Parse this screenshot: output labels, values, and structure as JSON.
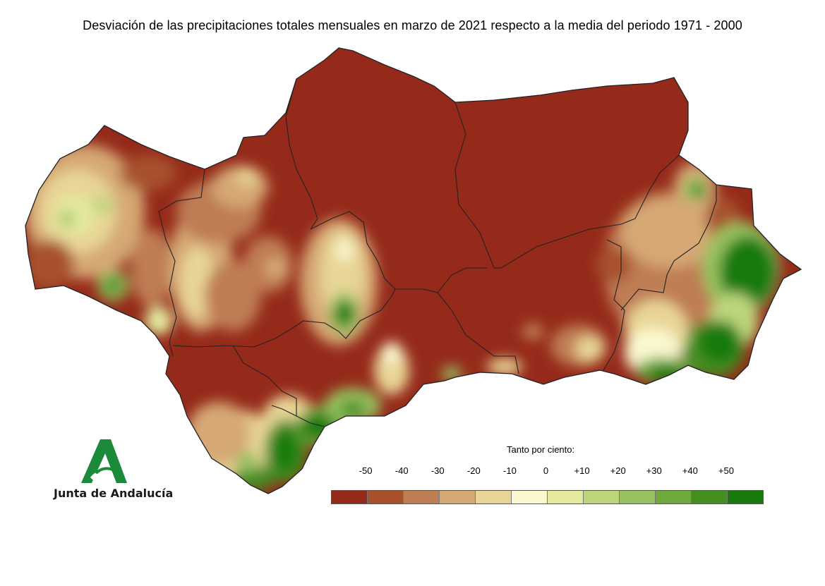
{
  "title": "Desviación de las precipitaciones totales mensuales en marzo de 2021 respecto a la media del periodo 1971 - 2000",
  "logo": {
    "text": "Junta de Andalucía",
    "icon": "junta-andalucia-logo-icon"
  },
  "legend": {
    "title": "Tanto por ciento:",
    "ticks": [
      "-50",
      "-40",
      "-30",
      "-20",
      "-10",
      "0",
      "+10",
      "+20",
      "+30",
      "+40",
      "+50"
    ],
    "colors": [
      "#952a1a",
      "#a7512d",
      "#bf7d54",
      "#d5a874",
      "#e8d596",
      "#fbf8cf",
      "#e3ea9e",
      "#bcd57a",
      "#96c15e",
      "#6ea93b",
      "#458f20",
      "#187a0d"
    ]
  },
  "colors": {
    "very_dry": "#952a1a",
    "very_wet": "#187a0d",
    "border": "#222222"
  }
}
